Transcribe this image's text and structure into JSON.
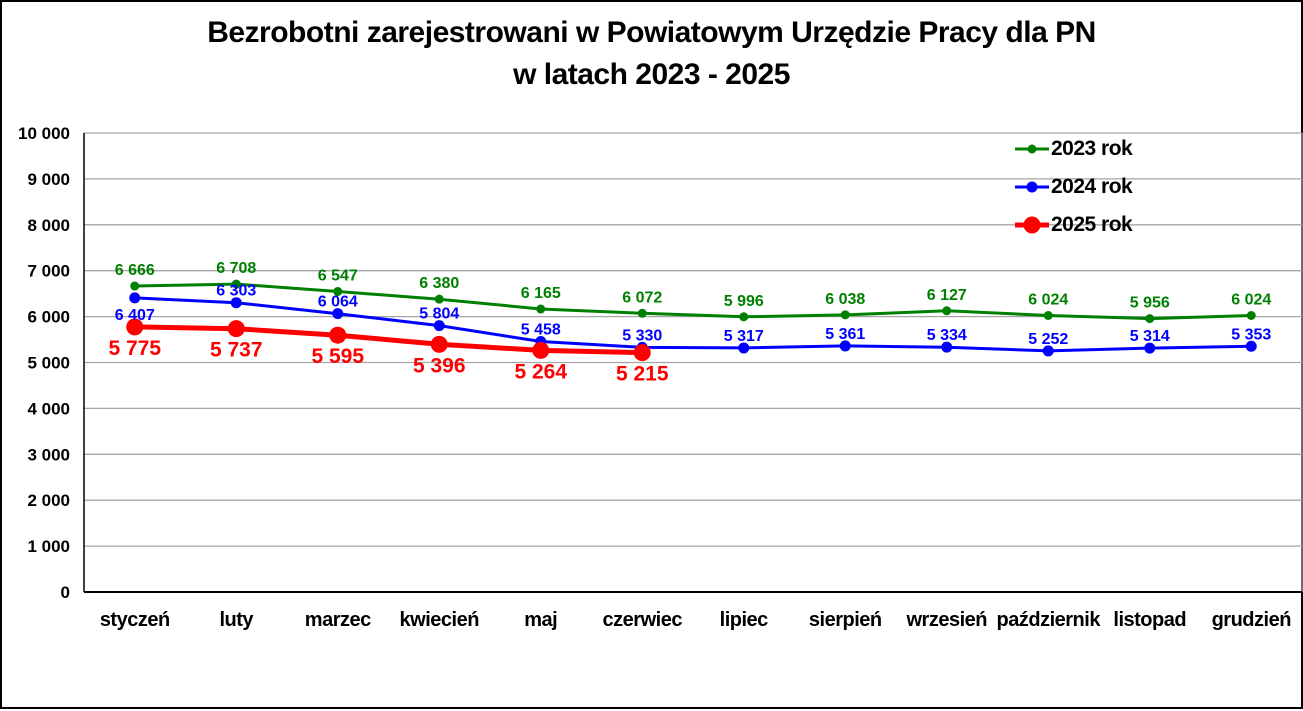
{
  "title": {
    "line1": "Bezrobotni zarejestrowani w Powiatowym Urzędzie Pracy dla PN",
    "line2": "w latach 2023 - 2025"
  },
  "chart_data": {
    "type": "line",
    "categories": [
      "styczeń",
      "luty",
      "marzec",
      "kwiecień",
      "maj",
      "czerwiec",
      "lipiec",
      "sierpień",
      "wrzesień",
      "październik",
      "listopad",
      "grudzień"
    ],
    "series": [
      {
        "name": "2023 rok",
        "color": "#008000",
        "values": [
          6666,
          6708,
          6547,
          6380,
          6165,
          6072,
          5996,
          6038,
          6127,
          6024,
          5956,
          6024
        ]
      },
      {
        "name": "2024 rok",
        "color": "#0000FF",
        "values": [
          6407,
          6303,
          6064,
          5804,
          5458,
          5330,
          5317,
          5361,
          5334,
          5252,
          5314,
          5353
        ]
      },
      {
        "name": "2025 rok",
        "color": "#FF0000",
        "values": [
          5775,
          5737,
          5595,
          5396,
          5264,
          5215
        ]
      }
    ],
    "ylim": [
      0,
      10000
    ],
    "ytick_step": 1000,
    "ytick_labels": [
      "0",
      "1 000",
      "2 000",
      "3 000",
      "4 000",
      "5 000",
      "6 000",
      "7 000",
      "8 000",
      "9 000",
      "10 000"
    ],
    "grid": true,
    "data_labels": true,
    "legend_position": "top-right"
  },
  "colors": {
    "grid": "#A6A6A6",
    "axis": "#000000",
    "text": "#000000",
    "background": "#FFFFFF",
    "border": "#000000"
  }
}
